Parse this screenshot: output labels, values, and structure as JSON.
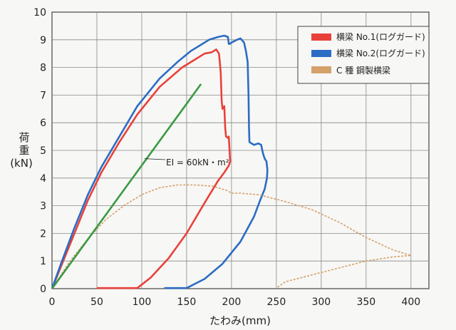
{
  "chart_data": {
    "type": "line",
    "xlabel": "たわみ(mm)",
    "ylabel_line1": "荷",
    "ylabel_line2": "重",
    "ylabel_line3": "(kN)",
    "xlim": [
      0,
      420
    ],
    "ylim": [
      0,
      10
    ],
    "x_ticks": [
      0,
      50,
      100,
      150,
      200,
      250,
      300,
      350,
      400
    ],
    "y_ticks": [
      0,
      1,
      2,
      3,
      4,
      5,
      6,
      7,
      8,
      9,
      10
    ],
    "grid": true,
    "legend_position": "top-right",
    "annotation": "EI = 60kN・m²",
    "series": [
      {
        "name": "横梁 No.1(ログガード)",
        "color": "#e8413a",
        "points": [
          [
            0,
            0
          ],
          [
            10,
            0.8
          ],
          [
            25,
            2.0
          ],
          [
            40,
            3.2
          ],
          [
            55,
            4.2
          ],
          [
            75,
            5.3
          ],
          [
            95,
            6.3
          ],
          [
            120,
            7.3
          ],
          [
            145,
            8.0
          ],
          [
            160,
            8.3
          ],
          [
            170,
            8.5
          ],
          [
            178,
            8.55
          ],
          [
            183,
            8.65
          ],
          [
            186,
            8.5
          ],
          [
            187,
            8.2
          ],
          [
            188,
            7.8
          ],
          [
            189,
            6.8
          ],
          [
            190,
            6.5
          ],
          [
            192,
            6.6
          ],
          [
            193,
            5.8
          ],
          [
            194,
            5.5
          ],
          [
            196,
            5.45
          ],
          [
            197,
            5.5
          ],
          [
            198,
            4.9
          ],
          [
            198.5,
            4.6
          ],
          [
            197,
            4.45
          ],
          [
            192,
            4.2
          ],
          [
            185,
            3.9
          ],
          [
            170,
            3.1
          ],
          [
            150,
            2.0
          ],
          [
            130,
            1.1
          ],
          [
            110,
            0.4
          ],
          [
            95,
            0.02
          ],
          [
            50,
            0.02
          ]
        ]
      },
      {
        "name": "横梁 No.2(ログガード)",
        "color": "#2b6cc4",
        "points": [
          [
            0,
            0
          ],
          [
            10,
            0.9
          ],
          [
            25,
            2.2
          ],
          [
            40,
            3.4
          ],
          [
            55,
            4.4
          ],
          [
            75,
            5.5
          ],
          [
            95,
            6.6
          ],
          [
            120,
            7.6
          ],
          [
            140,
            8.2
          ],
          [
            155,
            8.6
          ],
          [
            165,
            8.8
          ],
          [
            175,
            9.0
          ],
          [
            185,
            9.1
          ],
          [
            192,
            9.15
          ],
          [
            196,
            9.1
          ],
          [
            197,
            8.85
          ],
          [
            198,
            8.85
          ],
          [
            200,
            8.9
          ],
          [
            206,
            9.0
          ],
          [
            210,
            9.05
          ],
          [
            214,
            8.9
          ],
          [
            216,
            8.6
          ],
          [
            218,
            8.2
          ],
          [
            219,
            7.0
          ],
          [
            219.5,
            5.8
          ],
          [
            220,
            5.3
          ],
          [
            225,
            5.2
          ],
          [
            230,
            5.25
          ],
          [
            233,
            5.2
          ],
          [
            235,
            4.9
          ],
          [
            237,
            4.7
          ],
          [
            239,
            4.6
          ],
          [
            240,
            4.3
          ],
          [
            239.5,
            4.0
          ],
          [
            237,
            3.6
          ],
          [
            232,
            3.2
          ],
          [
            225,
            2.6
          ],
          [
            210,
            1.7
          ],
          [
            190,
            0.9
          ],
          [
            170,
            0.35
          ],
          [
            150,
            0.02
          ],
          [
            125,
            0.02
          ]
        ]
      },
      {
        "name": "C 種  鋼製横梁",
        "color": "#d4a16a",
        "dashed": true,
        "points": [
          [
            0,
            0
          ],
          [
            20,
            1.0
          ],
          [
            40,
            1.8
          ],
          [
            60,
            2.5
          ],
          [
            80,
            3.0
          ],
          [
            100,
            3.4
          ],
          [
            120,
            3.65
          ],
          [
            140,
            3.75
          ],
          [
            160,
            3.75
          ],
          [
            180,
            3.7
          ],
          [
            195,
            3.55
          ],
          [
            200,
            3.45
          ],
          [
            210,
            3.45
          ],
          [
            230,
            3.4
          ],
          [
            260,
            3.15
          ],
          [
            290,
            2.85
          ],
          [
            320,
            2.4
          ],
          [
            350,
            1.85
          ],
          [
            380,
            1.4
          ],
          [
            400,
            1.2
          ],
          [
            380,
            1.15
          ],
          [
            350,
            1.0
          ],
          [
            320,
            0.75
          ],
          [
            290,
            0.5
          ],
          [
            260,
            0.25
          ],
          [
            250,
            0.02
          ]
        ]
      },
      {
        "name": "EI = 60kN・m²",
        "color": "#3a9a45",
        "points": [
          [
            0,
            0
          ],
          [
            166,
            7.4
          ]
        ]
      }
    ]
  }
}
